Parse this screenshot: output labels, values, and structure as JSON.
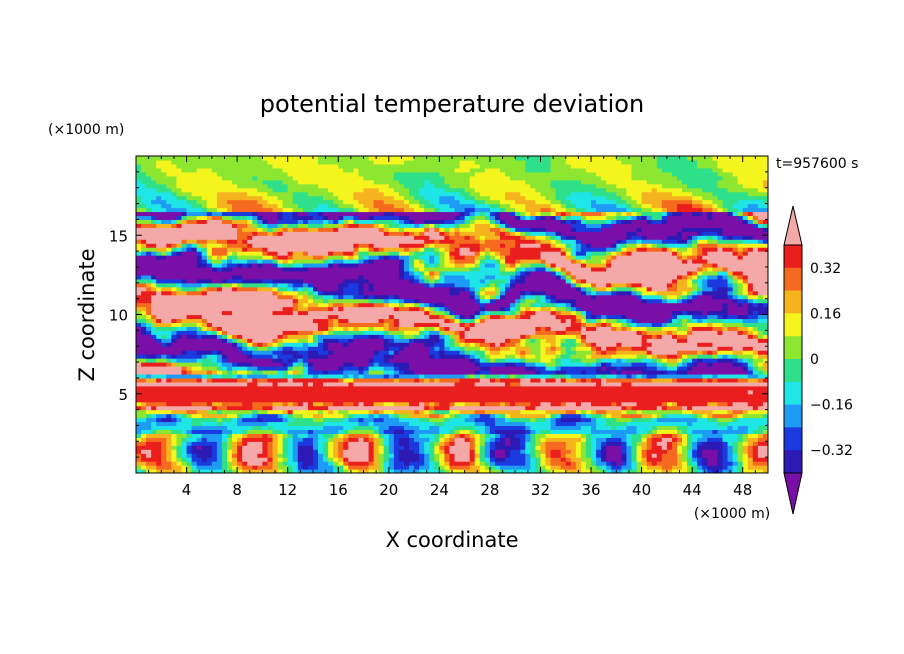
{
  "chart_data": {
    "type": "heatmap",
    "title": "potential temperature deviation",
    "xlabel": "X coordinate",
    "ylabel": "Z coordinate",
    "x_unit": "(×1000 m)",
    "y_unit": "(×1000 m)",
    "time_label": "t=957600 s",
    "xlim": [
      0,
      50
    ],
    "ylim": [
      0,
      20
    ],
    "x_ticks": [
      "4",
      "8",
      "12",
      "16",
      "20",
      "24",
      "28",
      "32",
      "36",
      "40",
      "44",
      "48"
    ],
    "y_ticks": [
      "5",
      "10",
      "15"
    ],
    "colorbar": {
      "labels": [
        "0.32",
        "0.16",
        "0",
        "−0.16",
        "−0.32"
      ],
      "levels": [
        -0.4,
        -0.32,
        -0.24,
        -0.16,
        -0.08,
        0,
        0.08,
        0.16,
        0.24,
        0.32,
        0.4
      ],
      "colors": [
        "#7a0fa8",
        "#2d1ab4",
        "#1a3ae0",
        "#1e9cf5",
        "#1ee6e6",
        "#2fe08a",
        "#8de630",
        "#f5f51e",
        "#f5b41e",
        "#f56a1e",
        "#eb1e1e",
        "#f5a8a8"
      ],
      "extend": "both"
    },
    "field_description_note": ""
  }
}
